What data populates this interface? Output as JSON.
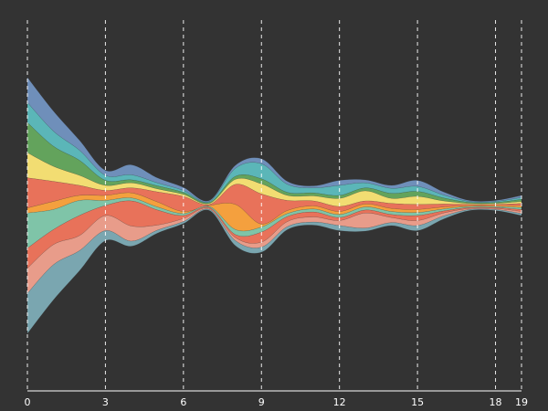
{
  "chart_data": {
    "type": "area",
    "subtype": "streamgraph",
    "background": "#333333",
    "x_ticks": [
      0,
      3,
      6,
      9,
      12,
      15,
      18,
      19
    ],
    "xlim": [
      0,
      19
    ],
    "grid": "vertical dashed at ticks",
    "x": [
      0,
      1,
      2,
      3,
      4,
      5,
      6,
      7,
      8,
      9,
      10,
      11,
      12,
      13,
      14,
      15,
      16,
      17,
      18,
      19
    ],
    "series": [
      {
        "color": "#6f8fba",
        "values": [
          2.5,
          2.0,
          1.0,
          0.5,
          1.0,
          0.5,
          0.3,
          0.1,
          0.3,
          0.5,
          0.3,
          0.2,
          0.5,
          0.3,
          0.3,
          0.6,
          0.3,
          0.1,
          0.1,
          0.2
        ]
      },
      {
        "color": "#5bb6b8",
        "values": [
          2.0,
          1.5,
          1.0,
          0.5,
          0.5,
          0.3,
          0.2,
          0.1,
          0.8,
          1.5,
          0.8,
          0.5,
          1.0,
          0.5,
          0.5,
          0.5,
          0.3,
          0.1,
          0.1,
          0.2
        ]
      },
      {
        "color": "#63a35c",
        "values": [
          3.0,
          2.0,
          1.5,
          0.5,
          0.3,
          0.3,
          0.2,
          0.1,
          0.3,
          0.5,
          0.3,
          0.3,
          0.3,
          0.3,
          0.5,
          0.5,
          0.3,
          0.1,
          0.1,
          0.2
        ]
      },
      {
        "color": "#f2dd72",
        "values": [
          2.5,
          1.5,
          1.0,
          0.5,
          0.5,
          0.3,
          0.2,
          0.1,
          0.5,
          1.0,
          0.5,
          0.5,
          0.8,
          1.0,
          0.5,
          0.8,
          0.3,
          0.1,
          0.1,
          0.2
        ]
      },
      {
        "color": "#e8725a",
        "values": [
          3.0,
          2.0,
          1.0,
          0.5,
          0.5,
          1.0,
          1.5,
          0.1,
          2.0,
          3.0,
          1.0,
          0.5,
          0.5,
          0.3,
          0.5,
          0.5,
          0.3,
          0.1,
          0.1,
          0.2
        ]
      },
      {
        "color": "#f4a03e",
        "values": [
          0.5,
          0.8,
          0.5,
          0.5,
          0.5,
          0.5,
          0.2,
          0.1,
          2.5,
          0.3,
          0.3,
          0.3,
          0.3,
          0.3,
          0.3,
          0.3,
          0.2,
          0.1,
          0.1,
          0.2
        ]
      },
      {
        "color": "#7fc4a8",
        "values": [
          3.5,
          2.0,
          1.5,
          0.5,
          0.3,
          0.3,
          0.2,
          0.1,
          0.5,
          0.5,
          0.3,
          0.3,
          0.3,
          0.3,
          0.3,
          0.3,
          0.2,
          0.1,
          0.1,
          0.2
        ]
      },
      {
        "color": "#e8725a",
        "values": [
          2.0,
          1.5,
          2.0,
          1.0,
          2.5,
          1.5,
          0.3,
          0.1,
          0.3,
          1.0,
          0.5,
          0.5,
          0.3,
          0.3,
          0.3,
          0.5,
          0.2,
          0.1,
          0.1,
          0.2
        ]
      },
      {
        "color": "#e89c8a",
        "values": [
          2.5,
          2.0,
          1.5,
          1.5,
          1.5,
          0.5,
          0.3,
          0.1,
          0.3,
          0.5,
          0.5,
          0.5,
          0.5,
          1.5,
          0.5,
          0.5,
          0.3,
          0.1,
          0.1,
          0.2
        ]
      },
      {
        "color": "#7aa6b0",
        "values": [
          4.0,
          3.5,
          2.0,
          1.0,
          0.5,
          0.3,
          0.2,
          0.1,
          0.5,
          0.5,
          0.3,
          0.3,
          0.5,
          0.3,
          0.3,
          0.5,
          0.3,
          0.1,
          0.1,
          0.2
        ]
      }
    ]
  }
}
